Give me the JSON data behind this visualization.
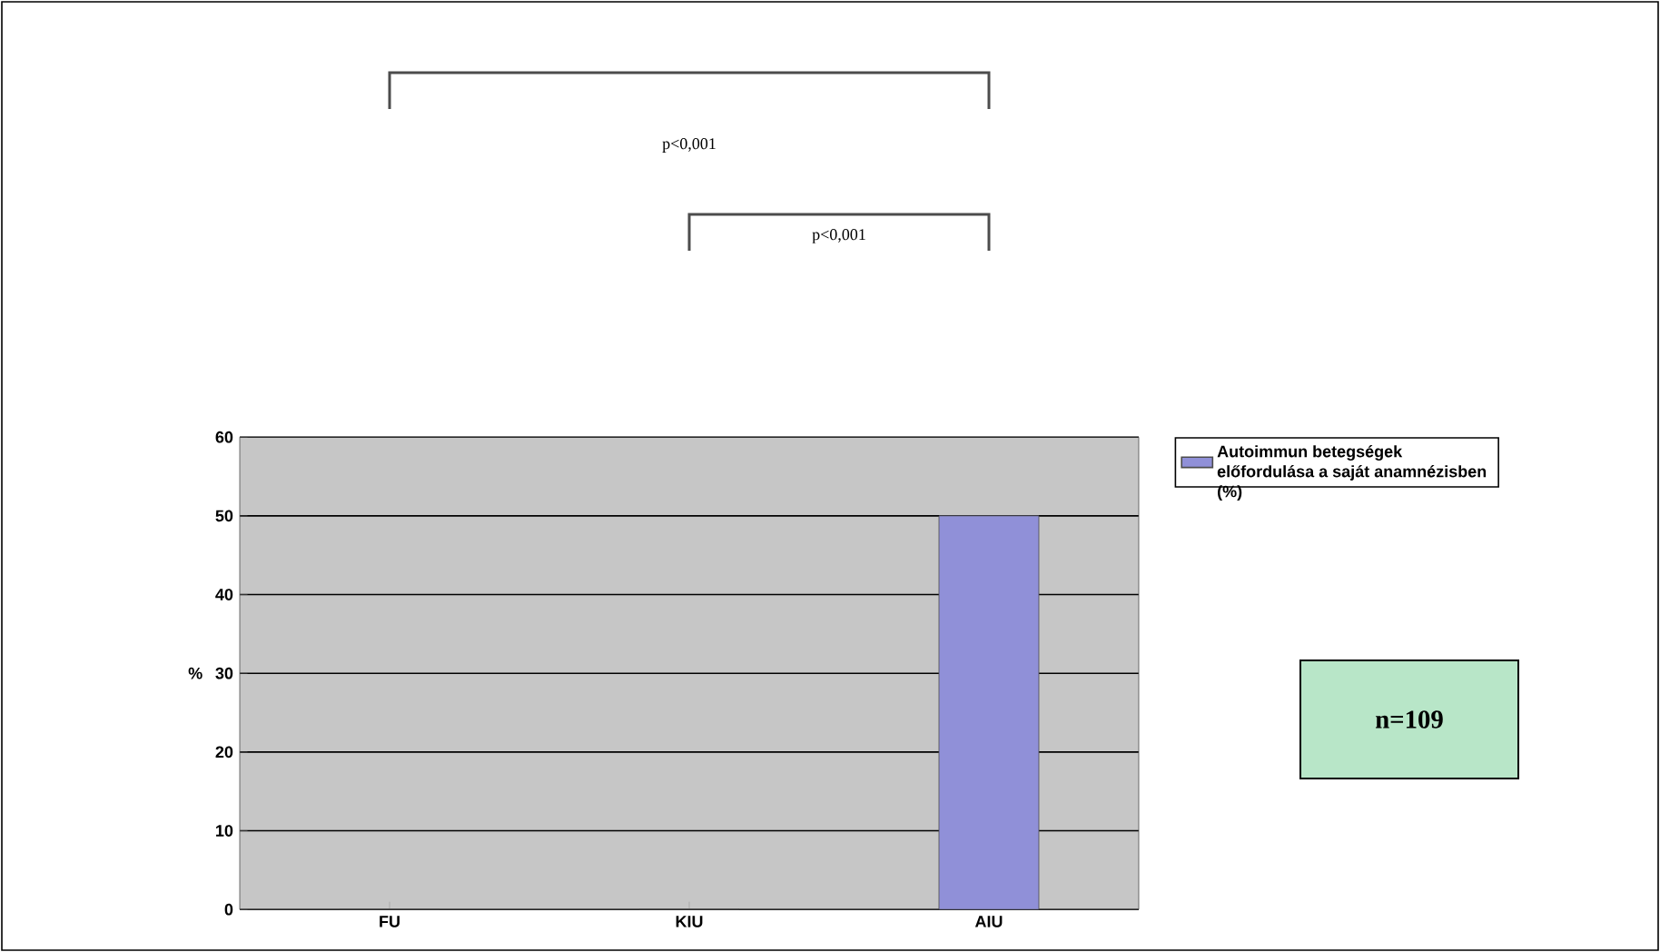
{
  "chart_data": {
    "type": "bar",
    "categories": [
      "FU",
      "KIU",
      "AIU"
    ],
    "series": [
      {
        "name": "Autoimmun betegségek előfordulása a saját anamnézisben (%)",
        "color": "#9090d8",
        "values": [
          0,
          0,
          50
        ]
      }
    ],
    "ylabel": "%",
    "ylim": [
      0,
      60
    ],
    "yticks": [
      0,
      10,
      20,
      30,
      40,
      50,
      60
    ],
    "grid": "y",
    "legend": "right",
    "annotations": [
      "p<0,001",
      "p<0,001",
      "n=109"
    ]
  }
}
